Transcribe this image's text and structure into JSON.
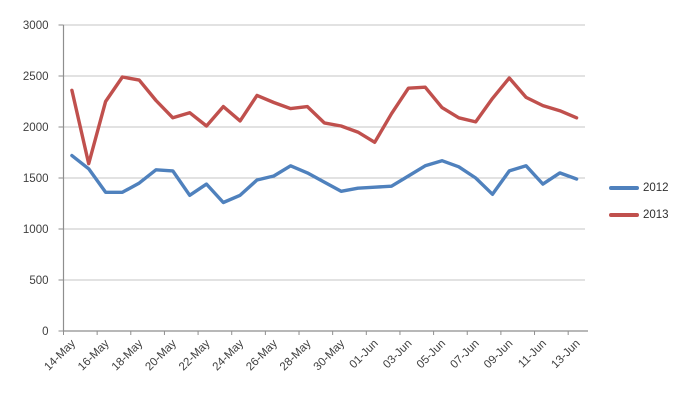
{
  "chart_data": {
    "type": "line",
    "title": "",
    "xlabel": "",
    "ylabel": "",
    "grid": true,
    "legend_position": "right",
    "ylim": [
      0,
      3000
    ],
    "y_ticks": [
      0,
      500,
      1000,
      1500,
      2000,
      2500,
      3000
    ],
    "x_tick_labels": [
      "14-May",
      "16-May",
      "18-May",
      "20-May",
      "22-May",
      "24-May",
      "26-May",
      "28-May",
      "30-May",
      "01-Jun",
      "03-Jun",
      "05-Jun",
      "07-Jun",
      "09-Jun",
      "11-Jun",
      "13-Jun"
    ],
    "x_label_every": 2,
    "categories": [
      "14-May",
      "15-May",
      "16-May",
      "17-May",
      "18-May",
      "19-May",
      "20-May",
      "21-May",
      "22-May",
      "23-May",
      "24-May",
      "25-May",
      "26-May",
      "27-May",
      "28-May",
      "29-May",
      "30-May",
      "31-May",
      "01-Jun",
      "02-Jun",
      "03-Jun",
      "04-Jun",
      "05-Jun",
      "06-Jun",
      "07-Jun",
      "08-Jun",
      "09-Jun",
      "10-Jun",
      "11-Jun",
      "12-Jun",
      "13-Jun"
    ],
    "series": [
      {
        "name": "2012",
        "color": "#4F81BD",
        "values": [
          1720,
          1590,
          1360,
          1360,
          1450,
          1580,
          1570,
          1330,
          1440,
          1260,
          1330,
          1480,
          1520,
          1620,
          1550,
          1460,
          1370,
          1400,
          1410,
          1420,
          1520,
          1620,
          1670,
          1610,
          1500,
          1340,
          1570,
          1620,
          1440,
          1550,
          1490
        ]
      },
      {
        "name": "2013",
        "color": "#C0504D",
        "values": [
          2360,
          1640,
          2250,
          2490,
          2460,
          2260,
          2090,
          2140,
          2010,
          2200,
          2060,
          2310,
          2240,
          2180,
          2200,
          2040,
          2010,
          1950,
          1850,
          2130,
          2380,
          2390,
          2190,
          2090,
          2050,
          2280,
          2480,
          2290,
          2210,
          2160,
          2090
        ]
      }
    ],
    "colors": {
      "gridline": "#c6c6c6",
      "axis": "#8e8e8e",
      "tick_text": "#3f3f3f",
      "background": "#ffffff"
    }
  }
}
